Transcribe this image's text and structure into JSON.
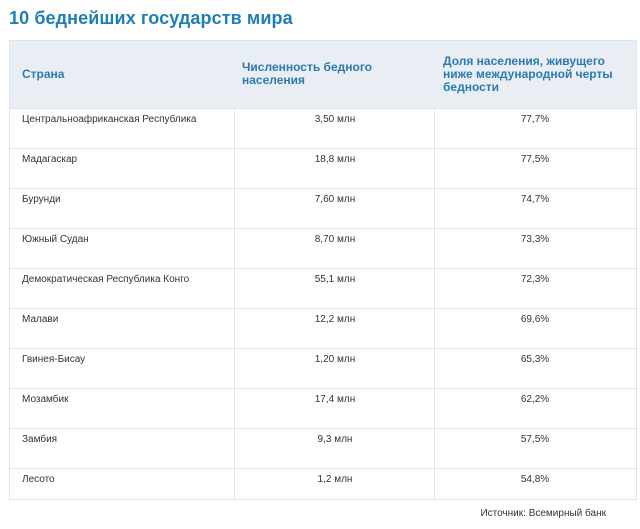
{
  "title": "10 беднейших государств мира",
  "table": {
    "headers": {
      "country": "Страна",
      "population": "Численность бедного населения",
      "share": "Доля населения, живущего ниже международной черты бедности"
    },
    "rows": [
      {
        "country": "Центральноафриканская Республика",
        "population": "3,50 млн",
        "share": "77,7%"
      },
      {
        "country": "Мадагаскар",
        "population": "18,8 млн",
        "share": "77,5%"
      },
      {
        "country": "Бурунди",
        "population": "7,60 млн",
        "share": "74,7%"
      },
      {
        "country": "Южный Судан",
        "population": "8,70 млн",
        "share": "73,3%"
      },
      {
        "country": "Демократическая Республика Конго",
        "population": "55,1 млн",
        "share": "72,3%"
      },
      {
        "country": "Малави",
        "population": "12,2 млн",
        "share": "69,6%"
      },
      {
        "country": "Гвинея-Бисау",
        "population": "1,20 млн",
        "share": "65,3%"
      },
      {
        "country": "Мозамбик",
        "population": "17,4 млн",
        "share": "62,2%"
      },
      {
        "country": "Замбия",
        "population": "9,3 млн",
        "share": "57,5%"
      },
      {
        "country": "Лесото",
        "population": "1,2 млн",
        "share": "54,8%"
      }
    ]
  },
  "source": "Источник: Всемирный банк"
}
